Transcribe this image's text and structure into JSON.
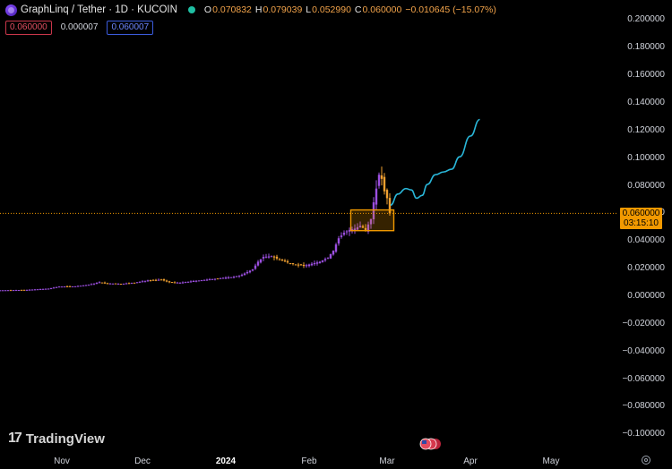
{
  "header": {
    "symbol": "GraphLinq / Tether · 1D · KUCOIN",
    "open_label": "O",
    "open": "0.070832",
    "high_label": "H",
    "high": "0.079039",
    "low_label": "L",
    "low": "0.052990",
    "close_label": "C",
    "close": "0.060000",
    "change": "−0.010645 (−15.07%)"
  },
  "badges": {
    "bid": "0.060000",
    "spread": "0.000007",
    "ask": "0.060007"
  },
  "price_label": {
    "price": "0.060000",
    "countdown": "03:15:10"
  },
  "brand": {
    "mark": "17",
    "name": "TradingView"
  },
  "colors": {
    "up": "#9c4fe0",
    "down": "#f0a030",
    "projection": "#29b6d8",
    "highlight": "#f29900"
  },
  "chart_data": {
    "type": "candlestick",
    "y_ticks": [
      "0.200000",
      "0.180000",
      "0.160000",
      "0.140000",
      "0.120000",
      "0.100000",
      "0.080000",
      "0.060000",
      "0.040000",
      "0.020000",
      "0.000000",
      "−0.020000",
      "−0.040000",
      "−0.060000",
      "−0.080000",
      "−0.100000"
    ],
    "x_ticks": [
      {
        "label": "Nov",
        "bold": false,
        "day": 23
      },
      {
        "label": "Dec",
        "bold": false,
        "day": 53
      },
      {
        "label": "2024",
        "bold": true,
        "day": 84
      },
      {
        "label": "Feb",
        "bold": false,
        "day": 115
      },
      {
        "label": "Mar",
        "bold": false,
        "day": 144
      },
      {
        "label": "Apr",
        "bold": false,
        "day": 175
      },
      {
        "label": "May",
        "bold": false,
        "day": 205
      }
    ],
    "ylim": [
      -0.1,
      0.2
    ],
    "close_path": [
      [
        0,
        0.0043
      ],
      [
        10,
        0.0046
      ],
      [
        18,
        0.0055
      ],
      [
        22,
        0.007
      ],
      [
        28,
        0.0072
      ],
      [
        33,
        0.0083
      ],
      [
        37,
        0.0102
      ],
      [
        40,
        0.0093
      ],
      [
        45,
        0.009
      ],
      [
        50,
        0.0098
      ],
      [
        55,
        0.0115
      ],
      [
        60,
        0.012
      ],
      [
        63,
        0.0102
      ],
      [
        67,
        0.0098
      ],
      [
        72,
        0.011
      ],
      [
        77,
        0.012
      ],
      [
        82,
        0.0131
      ],
      [
        87,
        0.014
      ],
      [
        90,
        0.0155
      ],
      [
        94,
        0.0195
      ],
      [
        96,
        0.025
      ],
      [
        98,
        0.0285
      ],
      [
        101,
        0.029
      ],
      [
        104,
        0.0265
      ],
      [
        107,
        0.0245
      ],
      [
        110,
        0.023
      ],
      [
        113,
        0.022
      ],
      [
        116,
        0.0235
      ],
      [
        119,
        0.025
      ],
      [
        122,
        0.028
      ],
      [
        124,
        0.033
      ],
      [
        126,
        0.042
      ],
      [
        128,
        0.046
      ],
      [
        130,
        0.048
      ],
      [
        132,
        0.049
      ],
      [
        134,
        0.051
      ],
      [
        136,
        0.048
      ],
      [
        138,
        0.056
      ],
      [
        139,
        0.068
      ],
      [
        141,
        0.088
      ],
      [
        142,
        0.085
      ],
      [
        143,
        0.076
      ],
      [
        144,
        0.071
      ],
      [
        145,
        0.06
      ]
    ],
    "current_price": 0.06,
    "highlight_box": {
      "day_start": 130.5,
      "day_end": 146.5,
      "top": 0.0625,
      "bottom": 0.0475
    },
    "projection": [
      [
        145.3,
        0.066
      ],
      [
        148,
        0.074
      ],
      [
        151,
        0.078
      ],
      [
        153,
        0.077
      ],
      [
        155,
        0.071
      ],
      [
        157,
        0.073
      ],
      [
        159,
        0.081
      ],
      [
        162,
        0.088
      ],
      [
        165,
        0.09
      ],
      [
        168,
        0.092
      ],
      [
        171,
        0.101
      ],
      [
        175,
        0.116
      ],
      [
        178.5,
        0.128
      ]
    ]
  }
}
